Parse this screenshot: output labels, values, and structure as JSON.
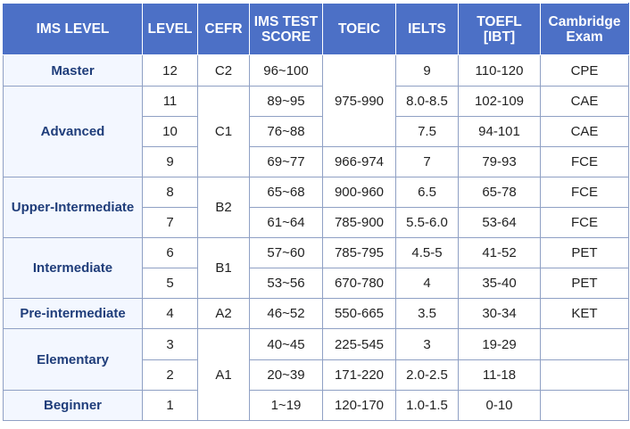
{
  "headers": {
    "ims_level": "IMS LEVEL",
    "level": "LEVEL",
    "cefr": "CEFR",
    "ims_test_score_1": "IMS TEST",
    "ims_test_score_2": "SCORE",
    "toeic": "TOEIC",
    "ielts": "IELTS",
    "toefl_1": "TOEFL",
    "toefl_2": "[IBT]",
    "cambridge_1": "Cambridge",
    "cambridge_2": "Exam"
  },
  "groups": {
    "master": "Master",
    "advanced": "Advanced",
    "upper_intermediate": "Upper-Intermediate",
    "intermediate": "Intermediate",
    "pre_intermediate": "Pre-intermediate",
    "elementary": "Elementary",
    "beginner": "Beginner"
  },
  "cefr": {
    "c2": "C2",
    "c1": "C1",
    "b2": "B2",
    "b1": "B1",
    "a2": "A2",
    "a1": "A1"
  },
  "rows": [
    {
      "level": "12",
      "score": "96~100",
      "toeic": "",
      "ielts": "9",
      "toefl": "110-120",
      "cambridge": "CPE"
    },
    {
      "level": "11",
      "score": "89~95",
      "toeic": "975-990",
      "ielts": "8.0-8.5",
      "toefl": "102-109",
      "cambridge": "CAE"
    },
    {
      "level": "10",
      "score": "76~88",
      "toeic": "",
      "ielts": "7.5",
      "toefl": "94-101",
      "cambridge": "CAE"
    },
    {
      "level": "9",
      "score": "69~77",
      "toeic": "966-974",
      "ielts": "7",
      "toefl": "79-93",
      "cambridge": "FCE"
    },
    {
      "level": "8",
      "score": "65~68",
      "toeic": "900-960",
      "ielts": "6.5",
      "toefl": "65-78",
      "cambridge": "FCE"
    },
    {
      "level": "7",
      "score": "61~64",
      "toeic": "785-900",
      "ielts": "5.5-6.0",
      "toefl": "53-64",
      "cambridge": "FCE"
    },
    {
      "level": "6",
      "score": "57~60",
      "toeic": "785-795",
      "ielts": "4.5-5",
      "toefl": "41-52",
      "cambridge": "PET"
    },
    {
      "level": "5",
      "score": "53~56",
      "toeic": "670-780",
      "ielts": "4",
      "toefl": "35-40",
      "cambridge": "PET"
    },
    {
      "level": "4",
      "score": "46~52",
      "toeic": "550-665",
      "ielts": "3.5",
      "toefl": "30-34",
      "cambridge": "KET"
    },
    {
      "level": "3",
      "score": "40~45",
      "toeic": "225-545",
      "ielts": "3",
      "toefl": "19-29",
      "cambridge": ""
    },
    {
      "level": "2",
      "score": "20~39",
      "toeic": "171-220",
      "ielts": "2.0-2.5",
      "toefl": "11-18",
      "cambridge": ""
    },
    {
      "level": "1",
      "score": "1~19",
      "toeic": "120-170",
      "ielts": "1.0-1.5",
      "toefl": "0-10",
      "cambridge": ""
    }
  ],
  "colors": {
    "header_bg": "#4c70c6",
    "level_bg": "#f3f7ff",
    "level_text": "#1f3d7a",
    "border": "#8fa0c4"
  }
}
